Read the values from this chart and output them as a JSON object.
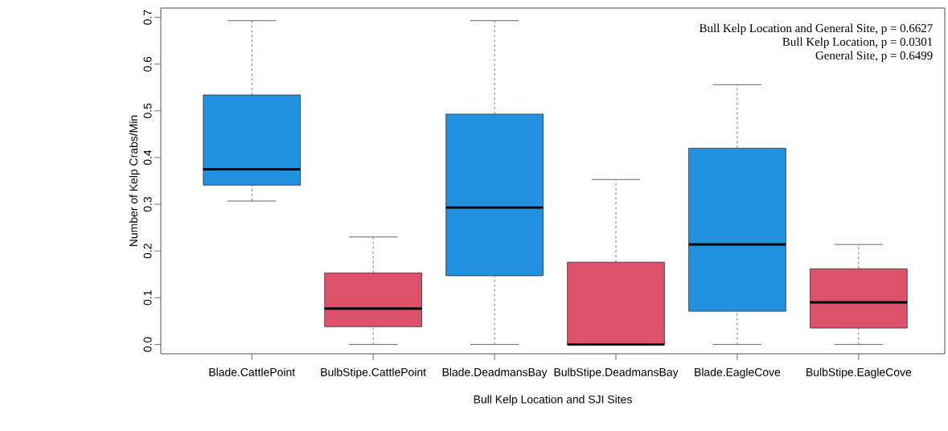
{
  "chart_data": {
    "type": "box",
    "xlabel": "Bull Kelp Location and SJI Sites",
    "ylabel": "Number of Kelp Crabs/Min",
    "categories": [
      "Blade.CattlePoint",
      "BulbStipe.CattlePoint",
      "Blade.DeadmansBay",
      "BulbStipe.DeadmansBay",
      "Blade.EagleCove",
      "BulbStipe.EagleCove"
    ],
    "colors": [
      "#2291e0",
      "#dd516a",
      "#2291e0",
      "#dd516a",
      "#2291e0",
      "#dd516a"
    ],
    "boxes": [
      {
        "low": 0.307,
        "q1": 0.341,
        "median": 0.375,
        "q3": 0.534,
        "high": 0.693
      },
      {
        "low": 0,
        "q1": 0.038,
        "median": 0.077,
        "q3": 0.153,
        "high": 0.23
      },
      {
        "low": 0,
        "q1": 0.147,
        "median": 0.293,
        "q3": 0.493,
        "high": 0.693
      },
      {
        "low": 0,
        "q1": 0,
        "median": 0,
        "q3": 0.176,
        "high": 0.353
      },
      {
        "low": 0,
        "q1": 0.071,
        "median": 0.214,
        "q3": 0.42,
        "high": 0.556
      },
      {
        "low": 0,
        "q1": 0.035,
        "median": 0.09,
        "q3": 0.162,
        "high": 0.214
      }
    ],
    "ylim": [
      -0.02,
      0.72
    ],
    "yticks": [
      {
        "value": 0,
        "label": "0.0"
      },
      0.1,
      0.2,
      0.3,
      0.4,
      0.5,
      0.6,
      0.7
    ],
    "annotations": [
      "Bull Kelp Location and General Site, p = 0.6627",
      "Bull Kelp Location, p = 0.0301",
      "General Site, p = 0.6499"
    ]
  }
}
